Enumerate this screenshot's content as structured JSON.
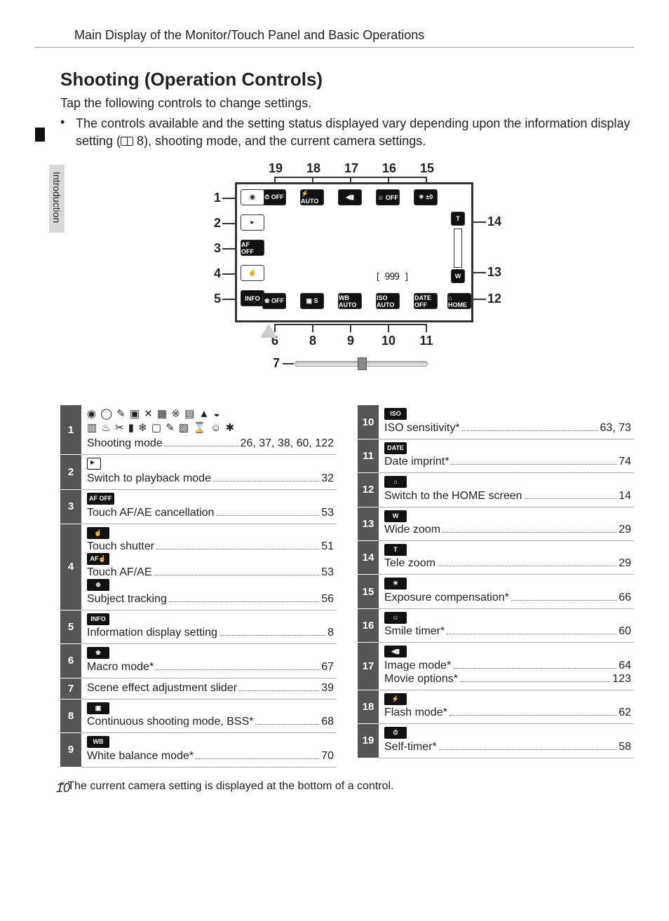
{
  "header": "Main Display of the Monitor/Touch Panel and Basic Operations",
  "sideTab": "Introduction",
  "title": "Shooting (Operation Controls)",
  "intro": "Tap the following controls to change settings.",
  "bulletText": "The controls available and the setting status displayed vary depending upon the information display setting (   8), shooting mode, and the current camera settings.",
  "bookRef": "8",
  "diagram": {
    "topNums": [
      "19",
      "18",
      "17",
      "16",
      "15"
    ],
    "leftNums": [
      "1",
      "2",
      "3",
      "4",
      "5"
    ],
    "rightNums": [
      "14",
      "13",
      "12"
    ],
    "bottomNums": [
      "6",
      "8",
      "9",
      "10",
      "11"
    ],
    "sliderNum": "7",
    "counter": "[  999 ]",
    "leftIcons": [
      {
        "t": "◉",
        "white": true
      },
      {
        "t": "▸",
        "white": true
      },
      {
        "t": "AF\nOFF"
      },
      {
        "t": "☝",
        "white": true
      },
      {
        "t": "INFO"
      }
    ],
    "topIcons": [
      {
        "t": "⏱\nOFF"
      },
      {
        "t": "⚡\nAUTO"
      },
      {
        "t": "◀▮"
      },
      {
        "t": "☺\nOFF"
      },
      {
        "t": "☀\n±0"
      }
    ],
    "bottomIcons": [
      {
        "t": "❀\nOFF"
      },
      {
        "t": "▣\nS"
      },
      {
        "t": "WB\nAUTO"
      },
      {
        "t": "ISO\nAUTO"
      },
      {
        "t": "DATE\nOFF"
      },
      {
        "t": "⌂\nHOME"
      }
    ],
    "zoom": {
      "t": "T",
      "w": "W"
    }
  },
  "legendLeft": [
    {
      "n": "1",
      "iconRows": [
        "◉ ◯ ✎ ▣ ✕ ▦ ※ ▤ ▲ ◒",
        "▥ ♨ ✂ ▮ ❄ ▢ ✎ ▧ ⌛ ☺ ✱"
      ],
      "lines": [
        {
          "label": "Shooting mode",
          "pages": "26, 37, 38, 60, 122"
        }
      ]
    },
    {
      "n": "2",
      "iconType": "play",
      "lines": [
        {
          "label": "Switch to playback mode",
          "pages": "32"
        }
      ]
    },
    {
      "n": "3",
      "iconMini": "AF OFF",
      "lines": [
        {
          "label": "Touch AF/AE cancellation",
          "pages": "53"
        }
      ]
    },
    {
      "n": "4",
      "multi": [
        {
          "iconMini": "☝",
          "label": "Touch shutter",
          "pages": "51"
        },
        {
          "iconMini": "AF☝",
          "label": "Touch AF/AE",
          "pages": "53"
        },
        {
          "iconMini": "⊕",
          "label": "Subject tracking",
          "pages": "56"
        }
      ]
    },
    {
      "n": "5",
      "iconMini": "INFO",
      "lines": [
        {
          "label": "Information display setting",
          "pages": "8"
        }
      ]
    },
    {
      "n": "6",
      "iconMini": "❀",
      "lines": [
        {
          "label": "Macro mode*",
          "pages": "67"
        }
      ]
    },
    {
      "n": "7",
      "lines": [
        {
          "label": "Scene effect adjustment slider",
          "pages": "39"
        }
      ]
    },
    {
      "n": "8",
      "iconMini": "▣",
      "lines": [
        {
          "label": "Continuous shooting mode, BSS*",
          "pages": "68"
        }
      ]
    },
    {
      "n": "9",
      "iconMini": "WB",
      "lines": [
        {
          "label": "White balance mode*",
          "pages": "70"
        }
      ]
    }
  ],
  "legendRight": [
    {
      "n": "10",
      "iconMini": "ISO",
      "lines": [
        {
          "label": "ISO sensitivity*",
          "pages": "63, 73"
        }
      ]
    },
    {
      "n": "11",
      "iconMini": "DATE",
      "lines": [
        {
          "label": "Date imprint*",
          "pages": "74"
        }
      ]
    },
    {
      "n": "12",
      "iconMini": "⌂",
      "lines": [
        {
          "label": "Switch to the HOME screen",
          "pages": "14"
        }
      ]
    },
    {
      "n": "13",
      "iconMini": "W",
      "lines": [
        {
          "label": "Wide zoom",
          "pages": "29"
        }
      ]
    },
    {
      "n": "14",
      "iconMini": "T",
      "lines": [
        {
          "label": "Tele zoom",
          "pages": "29"
        }
      ]
    },
    {
      "n": "15",
      "iconMini": "☀",
      "lines": [
        {
          "label": "Exposure compensation*",
          "pages": "66"
        }
      ]
    },
    {
      "n": "16",
      "iconMini": "☺",
      "lines": [
        {
          "label": "Smile timer*",
          "pages": "60"
        }
      ]
    },
    {
      "n": "17",
      "iconMini": "◀▮",
      "lines": [
        {
          "label": "Image mode*",
          "pages": "64"
        },
        {
          "label": "Movie options*",
          "pages": "123"
        }
      ]
    },
    {
      "n": "18",
      "iconMini": "⚡",
      "lines": [
        {
          "label": "Flash mode*",
          "pages": "62"
        }
      ]
    },
    {
      "n": "19",
      "iconMini": "⏱",
      "lines": [
        {
          "label": "Self-timer*",
          "pages": "58"
        }
      ]
    }
  ],
  "footnote": "*  The current camera setting is displayed at the bottom of a control.",
  "pageNumber": "10"
}
